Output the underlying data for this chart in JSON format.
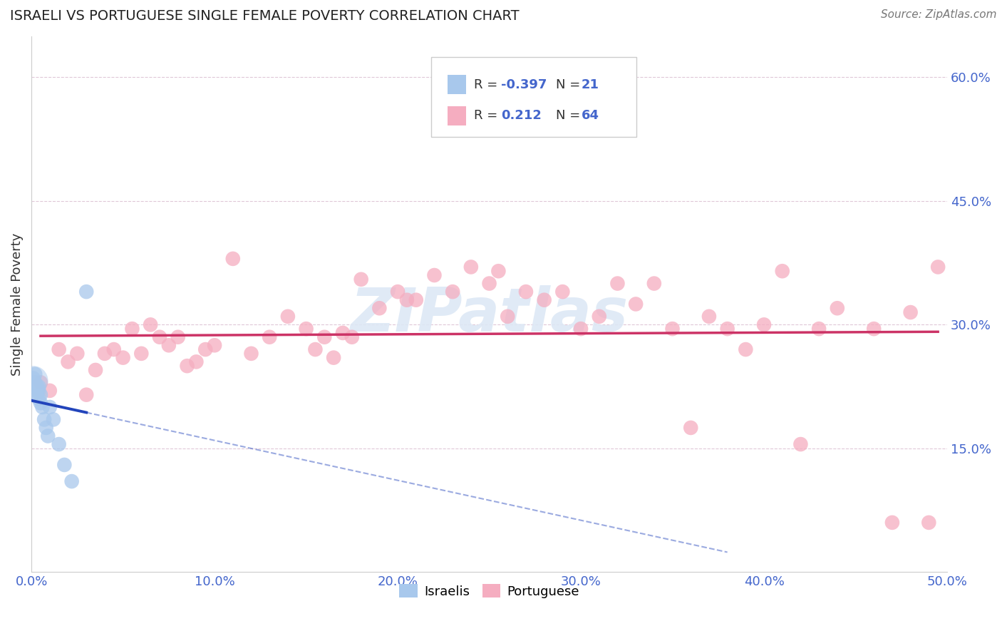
{
  "title": "ISRAELI VS PORTUGUESE SINGLE FEMALE POVERTY CORRELATION CHART",
  "source": "Source: ZipAtlas.com",
  "ylabel": "Single Female Poverty",
  "xlim": [
    0.0,
    0.5
  ],
  "ylim": [
    0.0,
    0.65
  ],
  "xtick_vals": [
    0.0,
    0.1,
    0.2,
    0.3,
    0.4,
    0.5
  ],
  "xtick_labels": [
    "0.0%",
    "10.0%",
    "20.0%",
    "30.0%",
    "40.0%",
    "50.0%"
  ],
  "ytick_vals": [
    0.15,
    0.3,
    0.45,
    0.6
  ],
  "ytick_labels": [
    "15.0%",
    "30.0%",
    "45.0%",
    "60.0%"
  ],
  "israeli_R": -0.397,
  "israeli_N": 21,
  "portuguese_R": 0.212,
  "portuguese_N": 64,
  "israeli_color": "#a8c8ec",
  "portuguese_color": "#f5adc0",
  "israeli_line_color": "#2244bb",
  "portuguese_line_color": "#cc3366",
  "tick_color": "#4466cc",
  "watermark_text": "ZIPatlas",
  "watermark_color": "#dde8f5",
  "background_color": "#ffffff",
  "israeli_x": [
    0.001,
    0.002,
    0.002,
    0.003,
    0.003,
    0.003,
    0.004,
    0.004,
    0.004,
    0.005,
    0.005,
    0.006,
    0.007,
    0.008,
    0.009,
    0.01,
    0.012,
    0.015,
    0.018,
    0.022,
    0.03
  ],
  "israeli_y": [
    0.235,
    0.23,
    0.24,
    0.225,
    0.22,
    0.215,
    0.225,
    0.22,
    0.21,
    0.215,
    0.205,
    0.2,
    0.185,
    0.175,
    0.165,
    0.2,
    0.185,
    0.155,
    0.13,
    0.11,
    0.34
  ],
  "portuguese_x": [
    0.005,
    0.01,
    0.015,
    0.02,
    0.025,
    0.03,
    0.035,
    0.04,
    0.045,
    0.05,
    0.055,
    0.06,
    0.065,
    0.07,
    0.075,
    0.08,
    0.085,
    0.09,
    0.095,
    0.1,
    0.11,
    0.12,
    0.13,
    0.14,
    0.15,
    0.155,
    0.16,
    0.165,
    0.17,
    0.175,
    0.18,
    0.19,
    0.2,
    0.205,
    0.21,
    0.22,
    0.23,
    0.24,
    0.25,
    0.255,
    0.26,
    0.27,
    0.28,
    0.29,
    0.3,
    0.31,
    0.32,
    0.33,
    0.34,
    0.35,
    0.36,
    0.37,
    0.38,
    0.39,
    0.4,
    0.41,
    0.42,
    0.43,
    0.44,
    0.46,
    0.47,
    0.48,
    0.49,
    0.495
  ],
  "portuguese_y": [
    0.23,
    0.22,
    0.27,
    0.255,
    0.265,
    0.215,
    0.245,
    0.265,
    0.27,
    0.26,
    0.295,
    0.265,
    0.3,
    0.285,
    0.275,
    0.285,
    0.25,
    0.255,
    0.27,
    0.275,
    0.38,
    0.265,
    0.285,
    0.31,
    0.295,
    0.27,
    0.285,
    0.26,
    0.29,
    0.285,
    0.355,
    0.32,
    0.34,
    0.33,
    0.33,
    0.36,
    0.34,
    0.37,
    0.35,
    0.365,
    0.31,
    0.34,
    0.33,
    0.34,
    0.295,
    0.31,
    0.35,
    0.325,
    0.35,
    0.295,
    0.175,
    0.31,
    0.295,
    0.27,
    0.3,
    0.365,
    0.155,
    0.295,
    0.32,
    0.295,
    0.06,
    0.315,
    0.06,
    0.37
  ]
}
